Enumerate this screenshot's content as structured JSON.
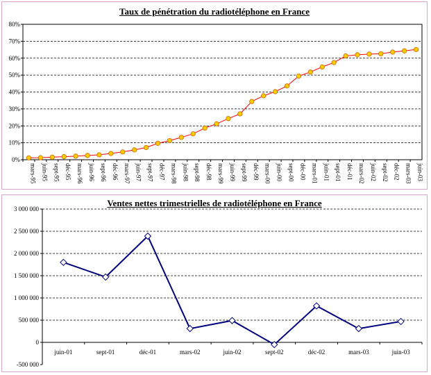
{
  "chart_data": [
    {
      "type": "line",
      "title": "Taux de pénétration du radiotéléphone en France",
      "xlabel": "",
      "ylabel": "",
      "ylim": [
        0,
        80
      ],
      "yticks": [
        "0%",
        "10%",
        "20%",
        "30%",
        "40%",
        "50%",
        "60%",
        "70%",
        "80%"
      ],
      "grid": true,
      "legend": "none",
      "line_color": "#ff0000",
      "marker_fill": "#ffcc00",
      "marker_stroke": "#cc6600",
      "categories": [
        "mars-95",
        "juin-95",
        "sept-95",
        "déc-95",
        "mars-96",
        "juin-96",
        "sept-96",
        "déc-96",
        "mars-97",
        "juin-97",
        "sept-97",
        "déc-97",
        "mars-98",
        "juin-98",
        "sept-98",
        "déc-98",
        "mars-99",
        "juin-99",
        "sept-99",
        "déc-99",
        "mars-00",
        "juin-00",
        "sept-00",
        "déc-00",
        "mars-01",
        "juin-01",
        "sept-01",
        "déc-01",
        "mars-02",
        "juin-02",
        "sept-02",
        "déc-02",
        "mars-03",
        "juin-03"
      ],
      "values": [
        1.1,
        1.2,
        1.5,
        1.8,
        2.1,
        2.5,
        2.9,
        3.7,
        4.6,
        5.8,
        7.2,
        9.7,
        11.3,
        13.2,
        15.3,
        18.7,
        21.2,
        24.3,
        27.1,
        34.4,
        37.8,
        40.2,
        43.6,
        49.4,
        51.8,
        54.8,
        57.4,
        61.3,
        62.0,
        62.4,
        62.6,
        63.6,
        64.3,
        65.1
      ]
    },
    {
      "type": "line",
      "title": "Ventes nettes trimestrielles de radiotéléphone en France",
      "xlabel": "",
      "ylabel": "",
      "ylim": [
        -500000,
        3000000
      ],
      "yticks": [
        "-500 000",
        "0",
        "500 000",
        "1 000 000",
        "1 500 000",
        "2 000 000",
        "2 500 000",
        "3 000 000"
      ],
      "grid": true,
      "legend": "none",
      "line_color": "#000080",
      "categories": [
        "juin-01",
        "sept-01",
        "déc-01",
        "mars-02",
        "juin-02",
        "sept-02",
        "déc-02",
        "mars-03",
        "juin-03"
      ],
      "values": [
        1800000,
        1470000,
        2390000,
        310000,
        490000,
        -50000,
        820000,
        310000,
        470000
      ]
    }
  ]
}
